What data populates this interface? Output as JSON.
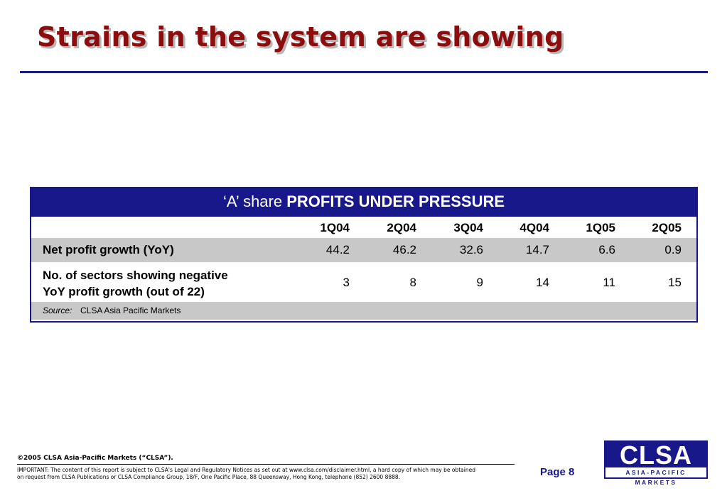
{
  "slide": {
    "title": "Strains in the system are showing"
  },
  "table": {
    "title_prefix": "‘A’ share ",
    "title_bold": "PROFITS UNDER PRESSURE",
    "columns": [
      "1Q04",
      "2Q04",
      "3Q04",
      "4Q04",
      "1Q05",
      "2Q05"
    ],
    "rows": [
      {
        "label": "Net profit growth (YoY)",
        "values": [
          "44.2",
          "46.2",
          "32.6",
          "14.7",
          "6.6",
          "0.9"
        ]
      },
      {
        "label_line1": "No. of sectors showing negative",
        "label_line2": "YoY profit growth (out of 22)",
        "values": [
          "3",
          "8",
          "9",
          "14",
          "11",
          "15"
        ]
      }
    ],
    "source_label": "Source:",
    "source_text": "CLSA Asia Pacific Markets"
  },
  "footer": {
    "copyright": "©2005 CLSA Asia-Pacific Markets (“CLSA”).",
    "disclaimer_line1": "IMPORTANT: The content of this report is subject to CLSA's Legal and Regulatory Notices as set out at www.clsa.com/disclaimer.html, a hard copy of which may be obtained",
    "disclaimer_line2": "on request from CLSA Publications or CLSA Compliance Group, 18/F, One Pacific Place, 88 Queensway, Hong Kong, telephone (852) 2600 8888.",
    "page": "Page 8"
  },
  "logo": {
    "main": "CLSA",
    "sub": "ASIA-PACIFIC MARKETS",
    "color": "#18188a"
  },
  "colors": {
    "title": "#8b0d0d",
    "accent": "#18188a",
    "row_shade": "#c8c8c8"
  }
}
